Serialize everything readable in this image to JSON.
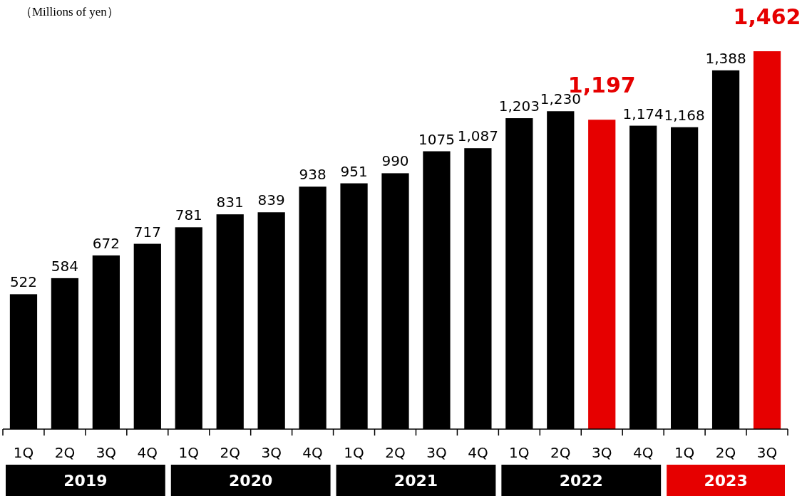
{
  "chart_data": {
    "type": "bar",
    "ylabel": "（Millions of yen）",
    "categories": [
      "1Q",
      "2Q",
      "3Q",
      "4Q",
      "1Q",
      "2Q",
      "3Q",
      "4Q",
      "1Q",
      "2Q",
      "3Q",
      "4Q",
      "1Q",
      "2Q",
      "3Q",
      "4Q",
      "1Q",
      "2Q",
      "3Q"
    ],
    "values": [
      522,
      584,
      672,
      717,
      781,
      831,
      839,
      938,
      951,
      990,
      1075,
      1087,
      1203,
      1230,
      1197,
      1174,
      1168,
      1388,
      1462
    ],
    "colors": [
      "#000000",
      "#000000",
      "#000000",
      "#000000",
      "#000000",
      "#000000",
      "#000000",
      "#000000",
      "#000000",
      "#000000",
      "#000000",
      "#000000",
      "#000000",
      "#000000",
      "#e60000",
      "#000000",
      "#000000",
      "#000000",
      "#e60000"
    ],
    "value_labels": [
      "522",
      "584",
      "672",
      "717",
      "781",
      "831",
      "839",
      "938",
      "951",
      "990",
      "1075",
      "1,087",
      "1,203",
      "1,230",
      "1,197",
      "1,174",
      "1,168",
      "1,388",
      "1,462"
    ],
    "annotations": [
      "2019",
      "2020",
      "2021",
      "2022",
      "2023"
    ]
  }
}
